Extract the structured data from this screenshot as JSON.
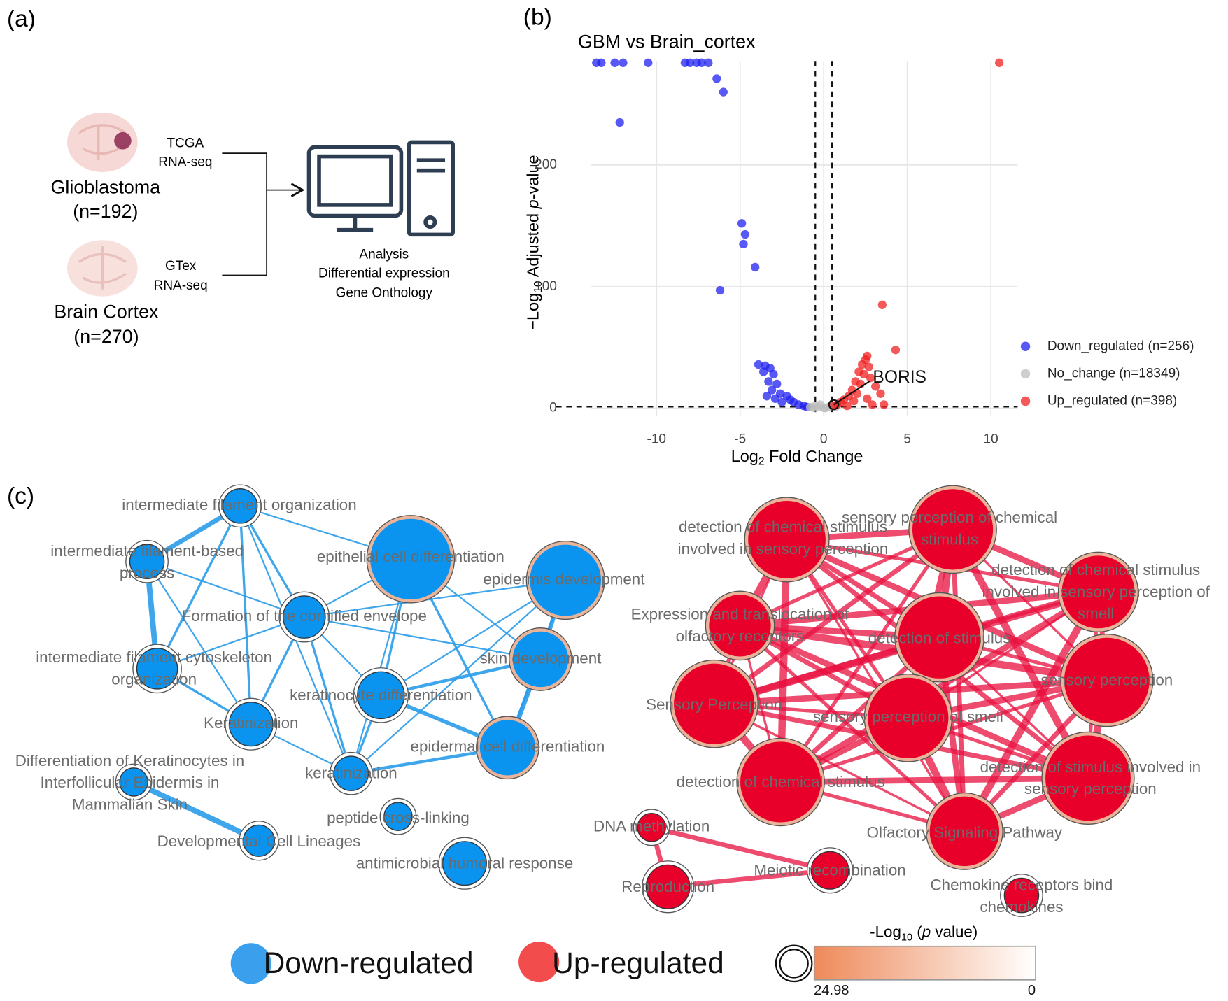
{
  "panel_labels": [
    "(a)",
    "(b)",
    "(c)"
  ],
  "panel_a": {
    "tcga": [
      "TCGA",
      "RNA-seq"
    ],
    "gbm": [
      "Glioblastoma",
      "(n=192)"
    ],
    "gtex": [
      "GTex",
      "RNA-seq"
    ],
    "cortex": [
      "Brain Cortex",
      "(n=270)"
    ],
    "analysis": [
      "Analysis",
      "Differential expression",
      "Gene Onthology"
    ]
  },
  "chart_data": {
    "type": "scatter",
    "title": "GBM vs Brain_cortex",
    "xlabel": [
      "Log",
      "2",
      " Fold Change"
    ],
    "ylabel": [
      "−Log",
      "10",
      " Adjusted ",
      "p",
      "-value"
    ],
    "xlim": [
      -13.9,
      11.6
    ],
    "ylim": [
      -6.4,
      285.5
    ],
    "xticks": [
      -10,
      -5,
      0,
      5,
      10
    ],
    "yticks": [
      0,
      100,
      200
    ],
    "grid": true,
    "vlines": [
      -0.5,
      0.5
    ],
    "hline": 1.3,
    "legend": "right",
    "series": [
      {
        "name": "Down_regulated (n=256)",
        "color": "#2020f0",
        "x": [
          -13.6,
          -13.3,
          -12.5,
          -12.0,
          -10.5,
          -8.3,
          -8.0,
          -7.6,
          -7.3,
          -6.9,
          -6.4,
          -6.0,
          -12.2,
          -4.9,
          -4.7,
          -4.8,
          -4.1,
          -6.2,
          -3.9,
          -3.5,
          -3.6,
          -3.2,
          -3.0,
          -3.3,
          -2.8,
          -3.1,
          -2.6,
          -2.2,
          -2.0,
          -1.8,
          -1.5,
          -1.2,
          -2.5,
          -3.4,
          -2.9,
          -1.0
        ],
        "values": [
          284,
          284,
          284,
          284,
          284,
          284,
          284,
          284,
          284,
          284,
          271,
          260,
          235,
          152,
          143,
          135,
          116,
          97,
          36,
          35,
          30,
          33,
          28,
          22,
          20,
          15,
          12,
          10,
          7,
          5,
          3,
          2,
          5,
          10,
          8,
          1
        ]
      },
      {
        "name": "No_change (n=18349)",
        "color": "#bdbdbd",
        "x": [
          -0.8,
          -0.5,
          -0.3,
          0,
          0.3,
          0.5,
          -0.2,
          0.1,
          0.7,
          -0.6
        ],
        "values": [
          1,
          2,
          1,
          0.5,
          1,
          2,
          3,
          0.2,
          1,
          0.4
        ]
      },
      {
        "name": "Up_regulated (n=398)",
        "color": "#f02020",
        "x": [
          10.5,
          3.5,
          4.3,
          2.6,
          2.5,
          2.3,
          2.7,
          2.1,
          2.4,
          2.8,
          1.9,
          2.2,
          3.1,
          1.7,
          2.0,
          3.4,
          1.5,
          1.2,
          1.0,
          0.8,
          1.8,
          2.6,
          2.9,
          3.6,
          0.6,
          1.4
        ],
        "values": [
          284,
          85,
          48,
          43,
          40,
          36,
          34,
          30,
          28,
          25,
          22,
          20,
          18,
          15,
          12,
          12,
          10,
          7,
          5,
          3,
          6,
          8,
          3,
          3,
          2,
          2
        ]
      }
    ],
    "annotations": [
      {
        "text": "BORIS",
        "x": 0.6,
        "y": 3
      }
    ]
  },
  "panel_c": {
    "down_network": {
      "color": "#0a93ef",
      "edge_color": "#2a9cea",
      "nodes": [
        {
          "label": [
            "intermediate filament organization"
          ]
        },
        {
          "label": [
            "intermediate filament-based",
            "process"
          ]
        },
        {
          "label": [
            "epithelial cell differentiation"
          ]
        },
        {
          "label": [
            "epidermis development"
          ]
        },
        {
          "label": [
            "Formation of the cornified envelope"
          ]
        },
        {
          "label": [
            "intermediate filament cytoskeleton",
            "organization"
          ]
        },
        {
          "label": [
            "skin development"
          ]
        },
        {
          "label": [
            "keratinocyte differentiation"
          ]
        },
        {
          "label": [
            "Keratinization"
          ]
        },
        {
          "label": [
            "epidermal cell differentiation"
          ]
        },
        {
          "label": [
            "keratinization"
          ]
        },
        {
          "label": [
            "Differentiation of Keratinocytes in",
            "Interfollicular Epidermis in",
            "Mammalian Skin"
          ]
        },
        {
          "label": [
            "Developmental Cell Lineages"
          ]
        },
        {
          "label": [
            "peptide cross-linking"
          ]
        },
        {
          "label": [
            "antimicrobial humoral response"
          ]
        }
      ]
    },
    "up_network": {
      "color": "#e8002a",
      "edge_color": "#e8103f",
      "nodes": [
        {
          "label": [
            "detection of chemical stimulus",
            "involved in sensory perception"
          ]
        },
        {
          "label": [
            "sensory perception of chemical",
            "stimulus"
          ]
        },
        {
          "label": [
            "detection of chemical stimulus",
            "involved in sensory perception of",
            "smell"
          ]
        },
        {
          "label": [
            "Expression and translocation of",
            "olfactory receptors"
          ]
        },
        {
          "label": [
            "detection of stimulus"
          ]
        },
        {
          "label": [
            "Sensory Perception"
          ]
        },
        {
          "label": [
            "sensory perception"
          ]
        },
        {
          "label": [
            "sensory perception of smell"
          ]
        },
        {
          "label": [
            "detection of chemical stimulus"
          ]
        },
        {
          "label": [
            "detection of stimulus involved in",
            "sensory perception"
          ]
        },
        {
          "label": [
            "Olfactory Signaling Pathway"
          ]
        },
        {
          "label": [
            "DNA methylation"
          ]
        },
        {
          "label": [
            "Reproduction"
          ]
        },
        {
          "label": [
            "Meiotic recombination"
          ]
        },
        {
          "label": [
            "Chemokine receptors bind",
            "chemokines"
          ]
        }
      ]
    },
    "legend": {
      "down": "Down-regulated",
      "down_color": "#3aa0ee",
      "up": "Up-regulated",
      "up_color": "#f24c4c",
      "scale_title": [
        "-Log",
        "10",
        " (",
        "p",
        " value)"
      ],
      "scale_colors": [
        "#ee8a5a",
        "#ffffff"
      ],
      "scale_ticks": [
        24.98,
        0
      ]
    }
  }
}
